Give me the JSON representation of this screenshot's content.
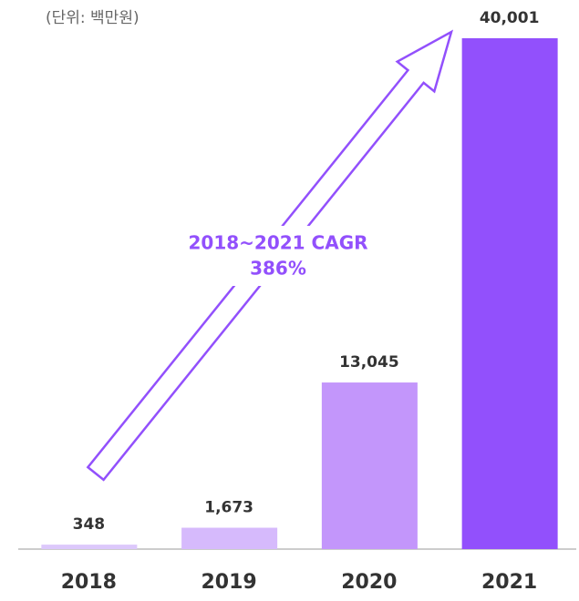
{
  "chart_data": {
    "type": "bar",
    "subtitle": "(단위: 백만원)",
    "categories": [
      "2018",
      "2019",
      "2020",
      "2021"
    ],
    "values": [
      348,
      1673,
      13045,
      40001
    ],
    "value_labels": [
      "348",
      "1,673",
      "13,045",
      "40,001"
    ],
    "colors": [
      "#dcc8fb",
      "#d6bafc",
      "#c396fb",
      "#9250fc"
    ],
    "annotation": [
      "2018~2021 CAGR",
      "386%"
    ],
    "annotation_color": "#9250fc"
  }
}
